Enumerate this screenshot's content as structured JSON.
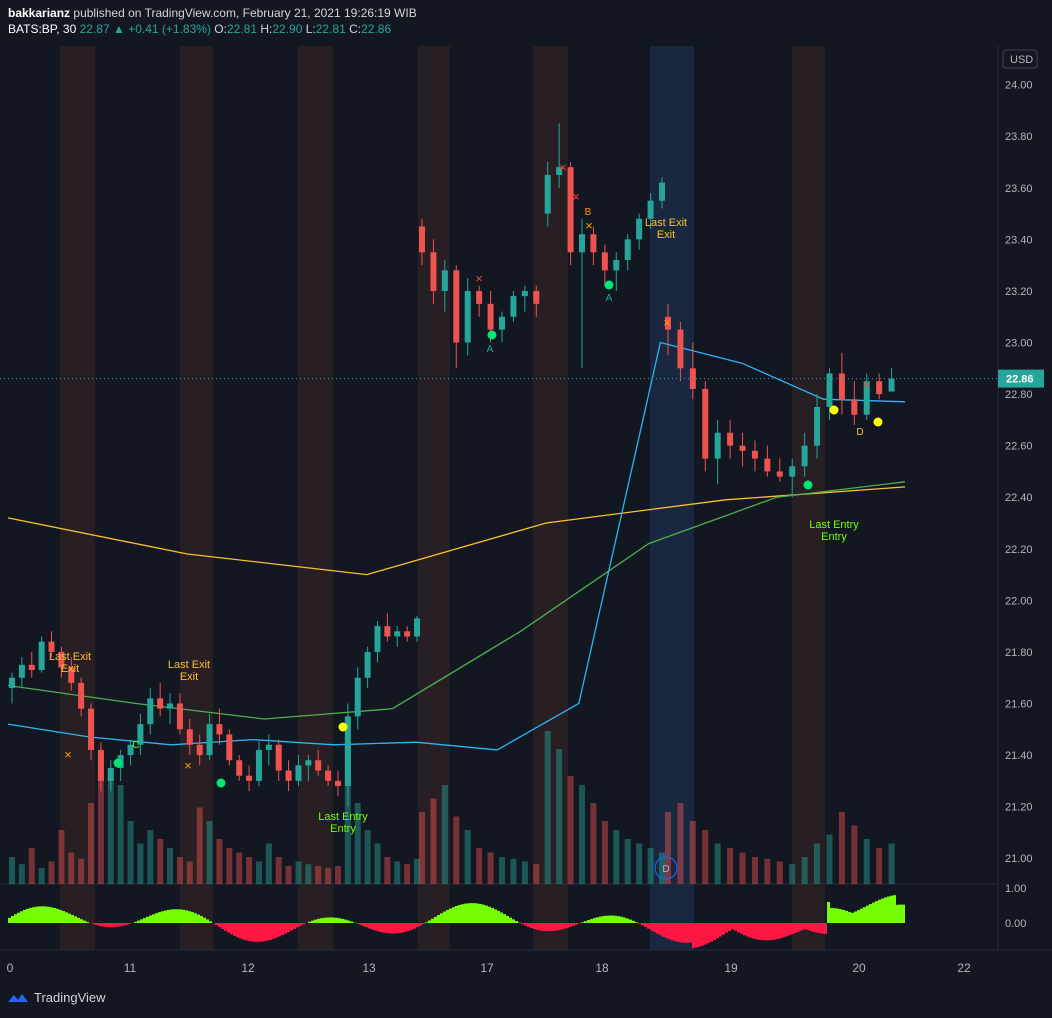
{
  "header": {
    "author": "bakkarianz",
    "published": "published on TradingView.com, February 21, 2021 19:26:19 WIB",
    "symbol": "BATS:BP, 30",
    "last": "22.87",
    "change": "+0.41 (+1.83%)",
    "o_label": "O:",
    "o": "22.81",
    "h_label": "H:",
    "h": "22.90",
    "l_label": "L:",
    "l": "22.81",
    "c_label": "C:",
    "c": "22.86"
  },
  "currency": "USD",
  "current_price_label": "22.86",
  "brand": "TradingView",
  "colors": {
    "up": "#26a69a",
    "down": "#ef5350",
    "ma_blue": "#29b6f6",
    "ma_green": "#4caf50",
    "ma_yellow": "#fbc02d",
    "osc_pos": "#76ff03",
    "osc_neg": "#ff1744"
  },
  "chart_data": {
    "type": "candlestick",
    "price_axis": {
      "min": 20.9,
      "max": 24.15,
      "ticks": [
        "24.00",
        "23.80",
        "23.60",
        "23.40",
        "23.20",
        "23.00",
        "22.80",
        "22.60",
        "22.40",
        "22.20",
        "22.00",
        "21.80",
        "21.60",
        "21.40",
        "21.20",
        "21.00"
      ]
    },
    "osc_axis": {
      "ticks": [
        "1.00",
        "0.00"
      ]
    },
    "x_ticks": [
      "0",
      "11",
      "12",
      "13",
      "17",
      "18",
      "19",
      "20",
      "22"
    ],
    "candles": [
      [
        21.66,
        21.72,
        21.6,
        21.7
      ],
      [
        21.7,
        21.78,
        21.66,
        21.75
      ],
      [
        21.75,
        21.8,
        21.7,
        21.73
      ],
      [
        21.73,
        21.86,
        21.72,
        21.84
      ],
      [
        21.84,
        21.88,
        21.78,
        21.8
      ],
      [
        21.8,
        21.82,
        21.7,
        21.74
      ],
      [
        21.74,
        21.78,
        21.65,
        21.68
      ],
      [
        21.68,
        21.7,
        21.55,
        21.58
      ],
      [
        21.58,
        21.6,
        21.38,
        21.42
      ],
      [
        21.42,
        21.45,
        21.26,
        21.3
      ],
      [
        21.3,
        21.38,
        21.26,
        21.35
      ],
      [
        21.35,
        21.42,
        21.3,
        21.4
      ],
      [
        21.4,
        21.46,
        21.36,
        21.44
      ],
      [
        21.44,
        21.56,
        21.4,
        21.52
      ],
      [
        21.52,
        21.66,
        21.48,
        21.62
      ],
      [
        21.62,
        21.68,
        21.55,
        21.58
      ],
      [
        21.58,
        21.64,
        21.52,
        21.6
      ],
      [
        21.6,
        21.64,
        21.48,
        21.5
      ],
      [
        21.5,
        21.54,
        21.4,
        21.44
      ],
      [
        21.44,
        21.48,
        21.36,
        21.4
      ],
      [
        21.4,
        21.56,
        21.38,
        21.52
      ],
      [
        21.52,
        21.58,
        21.44,
        21.48
      ],
      [
        21.48,
        21.5,
        21.36,
        21.38
      ],
      [
        21.38,
        21.4,
        21.3,
        21.32
      ],
      [
        21.32,
        21.36,
        21.26,
        21.3
      ],
      [
        21.3,
        21.46,
        21.28,
        21.42
      ],
      [
        21.42,
        21.48,
        21.36,
        21.44
      ],
      [
        21.44,
        21.46,
        21.3,
        21.34
      ],
      [
        21.34,
        21.38,
        21.26,
        21.3
      ],
      [
        21.3,
        21.4,
        21.28,
        21.36
      ],
      [
        21.36,
        21.4,
        21.3,
        21.38
      ],
      [
        21.38,
        21.42,
        21.32,
        21.34
      ],
      [
        21.34,
        21.36,
        21.28,
        21.3
      ],
      [
        21.3,
        21.34,
        21.24,
        21.28
      ],
      [
        21.28,
        21.6,
        21.2,
        21.55
      ],
      [
        21.55,
        21.74,
        21.5,
        21.7
      ],
      [
        21.7,
        21.82,
        21.66,
        21.8
      ],
      [
        21.8,
        21.92,
        21.76,
        21.9
      ],
      [
        21.9,
        21.95,
        21.84,
        21.86
      ],
      [
        21.86,
        21.9,
        21.82,
        21.88
      ],
      [
        21.88,
        21.9,
        21.84,
        21.86
      ],
      [
        21.86,
        21.94,
        21.84,
        21.93
      ],
      [
        23.45,
        23.48,
        23.3,
        23.35
      ],
      [
        23.35,
        23.4,
        23.15,
        23.2
      ],
      [
        23.2,
        23.32,
        23.12,
        23.28
      ],
      [
        23.28,
        23.3,
        22.9,
        23.0
      ],
      [
        23.0,
        23.25,
        22.95,
        23.2
      ],
      [
        23.2,
        23.22,
        23.1,
        23.15
      ],
      [
        23.15,
        23.2,
        23.0,
        23.05
      ],
      [
        23.05,
        23.12,
        23.0,
        23.1
      ],
      [
        23.1,
        23.2,
        23.08,
        23.18
      ],
      [
        23.18,
        23.22,
        23.12,
        23.2
      ],
      [
        23.2,
        23.22,
        23.1,
        23.15
      ],
      [
        23.5,
        23.7,
        23.45,
        23.65
      ],
      [
        23.65,
        23.85,
        23.6,
        23.68
      ],
      [
        23.68,
        23.7,
        23.3,
        23.35
      ],
      [
        23.35,
        23.48,
        22.9,
        23.42
      ],
      [
        23.42,
        23.45,
        23.3,
        23.35
      ],
      [
        23.35,
        23.38,
        23.22,
        23.28
      ],
      [
        23.28,
        23.35,
        23.2,
        23.32
      ],
      [
        23.32,
        23.42,
        23.28,
        23.4
      ],
      [
        23.4,
        23.5,
        23.36,
        23.48
      ],
      [
        23.48,
        23.58,
        23.44,
        23.55
      ],
      [
        23.55,
        23.64,
        23.52,
        23.62
      ],
      [
        23.1,
        23.15,
        22.95,
        23.05
      ],
      [
        23.05,
        23.08,
        22.85,
        22.9
      ],
      [
        22.9,
        23.0,
        22.78,
        22.82
      ],
      [
        22.82,
        22.85,
        22.5,
        22.55
      ],
      [
        22.55,
        22.7,
        22.45,
        22.65
      ],
      [
        22.65,
        22.7,
        22.55,
        22.6
      ],
      [
        22.6,
        22.65,
        22.52,
        22.58
      ],
      [
        22.58,
        22.62,
        22.5,
        22.55
      ],
      [
        22.55,
        22.6,
        22.48,
        22.5
      ],
      [
        22.5,
        22.55,
        22.46,
        22.48
      ],
      [
        22.48,
        22.55,
        22.4,
        22.52
      ],
      [
        22.52,
        22.65,
        22.48,
        22.6
      ],
      [
        22.6,
        22.8,
        22.55,
        22.75
      ],
      [
        22.75,
        22.9,
        22.7,
        22.88
      ],
      [
        22.88,
        22.96,
        22.72,
        22.78
      ],
      [
        22.78,
        22.85,
        22.68,
        22.72
      ],
      [
        22.72,
        22.88,
        22.7,
        22.85
      ],
      [
        22.85,
        22.88,
        22.78,
        22.8
      ],
      [
        22.81,
        22.9,
        22.81,
        22.86
      ]
    ],
    "ma_blue": [
      21.52,
      21.47,
      21.44,
      21.46,
      21.44,
      21.45,
      21.42,
      21.6,
      23.0,
      22.92,
      22.78,
      22.77
    ],
    "ma_green": [
      21.67,
      21.6,
      21.54,
      21.58,
      21.88,
      22.22,
      22.4,
      22.46
    ],
    "ma_yellow": [
      22.32,
      22.18,
      22.1,
      22.3,
      22.39,
      22.44
    ],
    "annotations": [
      "Last Exit",
      "Last Exit",
      "Last Exit",
      "Last Entry",
      "Last Entry",
      "A",
      "B",
      "C",
      "D"
    ],
    "session_markers": [
      "D"
    ]
  }
}
